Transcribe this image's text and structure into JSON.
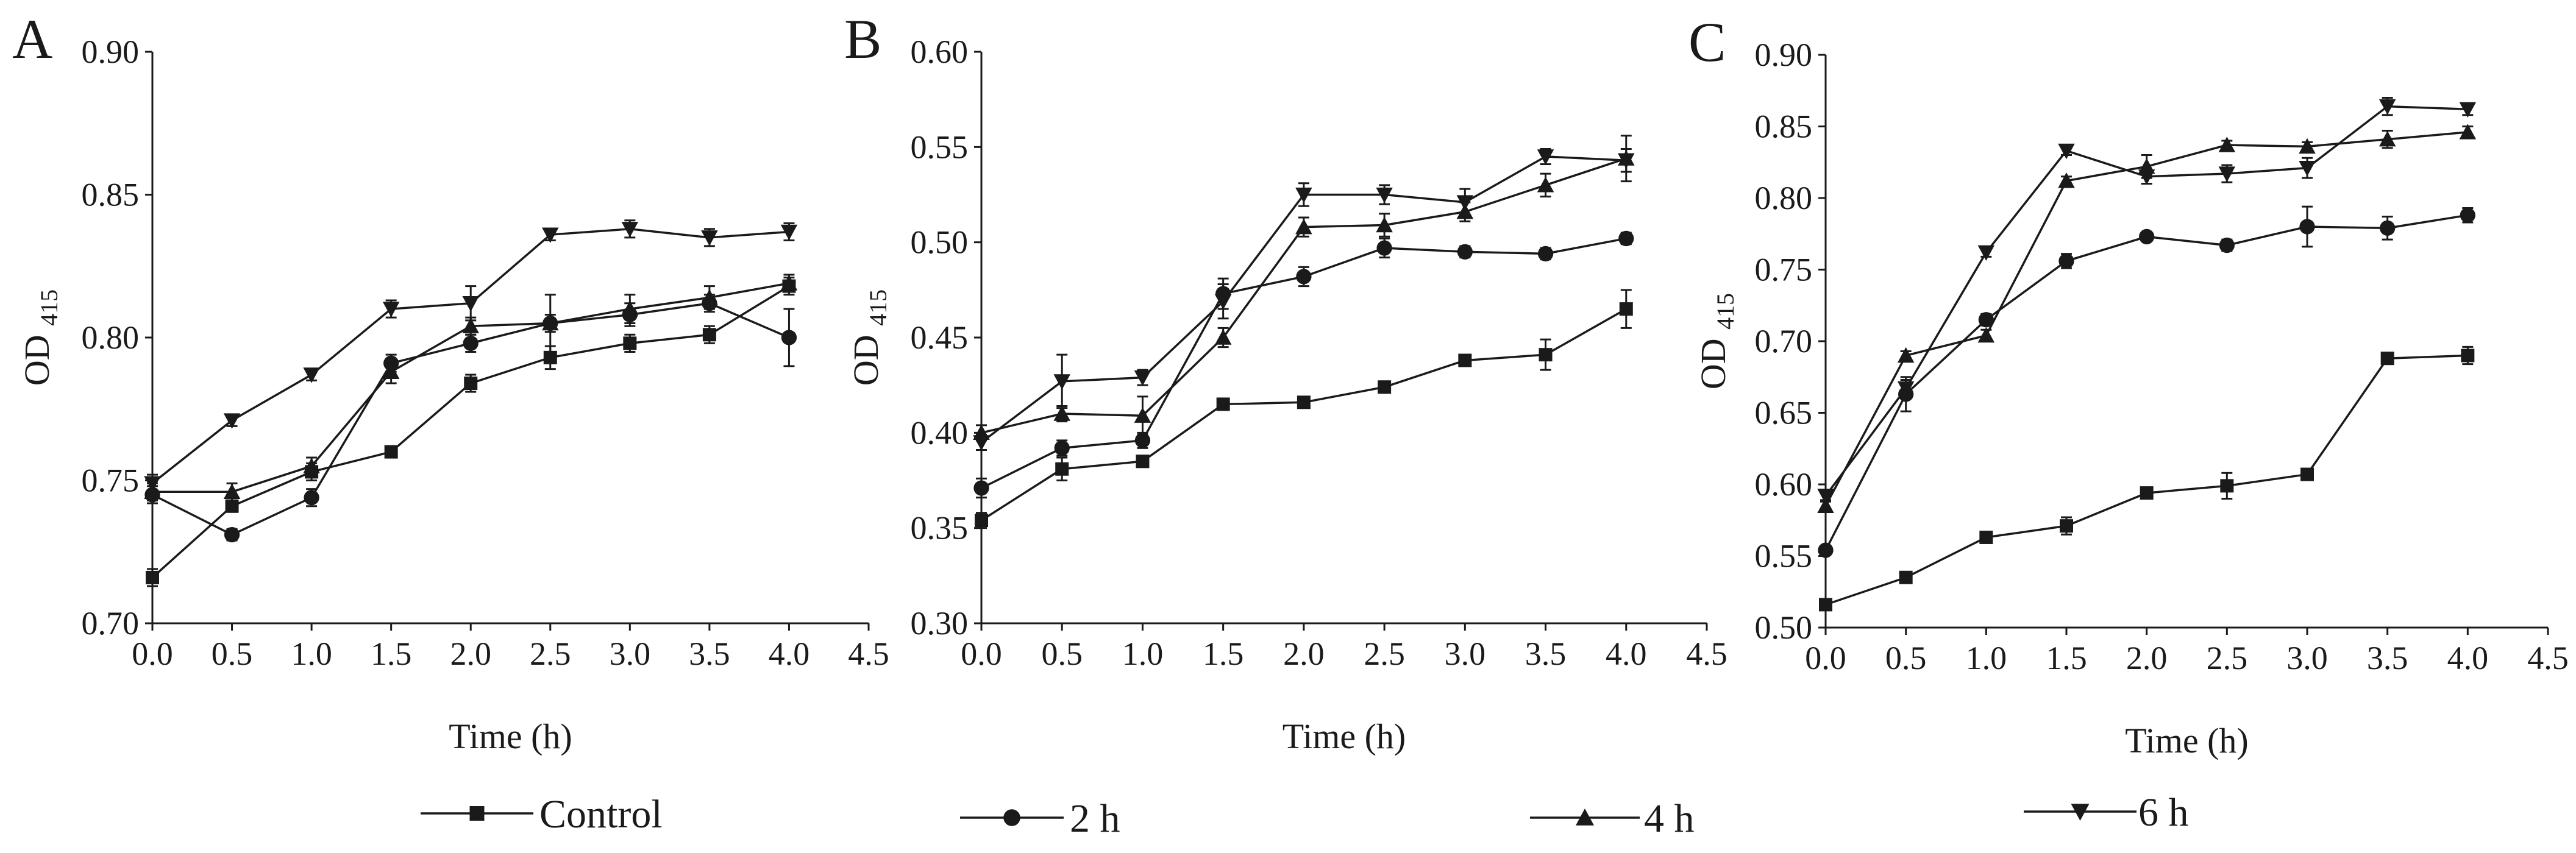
{
  "chart_data": [
    {
      "type": "line",
      "panel": "A",
      "xlabel": "Time (h)",
      "ylabel": "OD",
      "ylabel_sub": "415",
      "x": [
        0,
        0.5,
        1,
        1.5,
        2,
        2.5,
        3,
        3.5,
        4
      ],
      "xlim": [
        0,
        4.5
      ],
      "ylim": [
        0.7,
        0.9
      ],
      "xticks": [
        "0.0",
        "0.5",
        "1.0",
        "1.5",
        "2.0",
        "2.5",
        "3.0",
        "3.5",
        "4.0",
        "4.5"
      ],
      "yticks": [
        "0.70",
        "0.75",
        "0.80",
        "0.85",
        "0.90"
      ],
      "series": [
        {
          "name": "Control",
          "marker": "square",
          "values": [
            0.716,
            0.741,
            0.753,
            0.76,
            0.784,
            0.793,
            0.798,
            0.801,
            0.818
          ],
          "errors": [
            0.003,
            0.002,
            0.003,
            0.002,
            0.003,
            0.004,
            0.003,
            0.003,
            0.003
          ]
        },
        {
          "name": "2 h",
          "marker": "circle",
          "values": [
            0.745,
            0.731,
            0.744,
            0.791,
            0.798,
            0.805,
            0.808,
            0.812,
            0.8
          ],
          "errors": [
            0.003,
            0.002,
            0.003,
            0.003,
            0.003,
            0.003,
            0.004,
            0.003,
            0.01
          ]
        },
        {
          "name": "4 h",
          "marker": "triangle-up",
          "values": [
            0.746,
            0.746,
            0.755,
            0.788,
            0.804,
            0.805,
            0.81,
            0.814,
            0.819
          ],
          "errors": [
            0.003,
            0.003,
            0.003,
            0.004,
            0.003,
            0.01,
            0.005,
            0.004,
            0.003
          ]
        },
        {
          "name": "6 h",
          "marker": "triangle-down",
          "values": [
            0.749,
            0.771,
            0.787,
            0.81,
            0.812,
            0.836,
            0.838,
            0.835,
            0.837
          ],
          "errors": [
            0.003,
            0.002,
            0.002,
            0.003,
            0.006,
            0.002,
            0.003,
            0.003,
            0.003
          ]
        }
      ]
    },
    {
      "type": "line",
      "panel": "B",
      "xlabel": "Time (h)",
      "ylabel": "OD",
      "ylabel_sub": "415",
      "x": [
        0,
        0.5,
        1,
        1.5,
        2,
        2.5,
        3,
        3.5,
        4
      ],
      "xlim": [
        0,
        4.5
      ],
      "ylim": [
        0.3,
        0.6
      ],
      "xticks": [
        "0.0",
        "0.5",
        "1.0",
        "1.5",
        "2.0",
        "2.5",
        "3.0",
        "3.5",
        "4.0",
        "4.5"
      ],
      "yticks": [
        "0.30",
        "0.35",
        "0.40",
        "0.45",
        "0.50",
        "0.55",
        "0.60"
      ],
      "series": [
        {
          "name": "Control",
          "marker": "square",
          "values": [
            0.354,
            0.381,
            0.385,
            0.415,
            0.416,
            0.424,
            0.438,
            0.441,
            0.465
          ],
          "errors": [
            0.004,
            0.006,
            0.003,
            0.002,
            0.002,
            0.003,
            0.003,
            0.008,
            0.01
          ]
        },
        {
          "name": "2 h",
          "marker": "circle",
          "values": [
            0.371,
            0.392,
            0.396,
            0.473,
            0.482,
            0.497,
            0.495,
            0.494,
            0.502
          ],
          "errors": [
            0.005,
            0.004,
            0.004,
            0.008,
            0.005,
            0.005,
            0.003,
            0.003,
            0.003
          ]
        },
        {
          "name": "4 h",
          "marker": "triangle-up",
          "values": [
            0.4,
            0.41,
            0.409,
            0.45,
            0.508,
            0.509,
            0.516,
            0.53,
            0.544
          ],
          "errors": [
            0.004,
            0.004,
            0.01,
            0.005,
            0.005,
            0.006,
            0.005,
            0.006,
            0.012
          ]
        },
        {
          "name": "6 h",
          "marker": "triangle-down",
          "values": [
            0.395,
            0.427,
            0.429,
            0.469,
            0.525,
            0.525,
            0.521,
            0.545,
            0.543
          ],
          "errors": [
            0.004,
            0.014,
            0.004,
            0.009,
            0.006,
            0.005,
            0.007,
            0.004,
            0.006
          ]
        }
      ]
    },
    {
      "type": "line",
      "panel": "C",
      "xlabel": "Time (h)",
      "ylabel": "OD",
      "ylabel_sub": "415",
      "x": [
        0,
        0.5,
        1,
        1.5,
        2,
        2.5,
        3,
        3.5,
        4
      ],
      "xlim": [
        0,
        4.5
      ],
      "ylim": [
        0.5,
        0.9
      ],
      "xticks": [
        "0.0",
        "0.5",
        "1.0",
        "1.5",
        "2.0",
        "2.5",
        "3.0",
        "3.5",
        "4.0",
        "4.5"
      ],
      "yticks": [
        "0.50",
        "0.55",
        "0.60",
        "0.65",
        "0.70",
        "0.75",
        "0.80",
        "0.85",
        "0.90"
      ],
      "series": [
        {
          "name": "Control",
          "marker": "square",
          "values": [
            0.516,
            0.535,
            0.563,
            0.571,
            0.594,
            0.599,
            0.607,
            0.688,
            0.69
          ],
          "errors": [
            0.003,
            0.003,
            0.003,
            0.006,
            0.003,
            0.009,
            0.003,
            0.003,
            0.006
          ]
        },
        {
          "name": "2 h",
          "marker": "circle",
          "values": [
            0.554,
            0.663,
            0.715,
            0.756,
            0.773,
            0.767,
            0.78,
            0.779,
            0.788
          ],
          "errors": [
            0.003,
            0.012,
            0.004,
            0.005,
            0.003,
            0.004,
            0.014,
            0.008,
            0.005
          ]
        },
        {
          "name": "4 h",
          "marker": "triangle-up",
          "values": [
            0.585,
            0.69,
            0.704,
            0.812,
            0.822,
            0.837,
            0.836,
            0.841,
            0.846
          ],
          "errors": [
            0.004,
            0.003,
            0.004,
            0.003,
            0.008,
            0.003,
            0.003,
            0.006,
            0.004
          ]
        },
        {
          "name": "6 h",
          "marker": "triangle-down",
          "values": [
            0.592,
            0.667,
            0.762,
            0.833,
            0.815,
            0.817,
            0.821,
            0.864,
            0.862
          ],
          "errors": [
            0.004,
            0.006,
            0.003,
            0.003,
            0.005,
            0.006,
            0.007,
            0.006,
            0.004
          ]
        }
      ]
    }
  ],
  "legend": [
    {
      "label": "Control",
      "marker": "square"
    },
    {
      "label": "2 h",
      "marker": "circle"
    },
    {
      "label": "4 h",
      "marker": "triangle-up"
    },
    {
      "label": "6 h",
      "marker": "triangle-down"
    }
  ],
  "colors": {
    "ink": "#1a1a1a",
    "background": "#ffffff"
  }
}
